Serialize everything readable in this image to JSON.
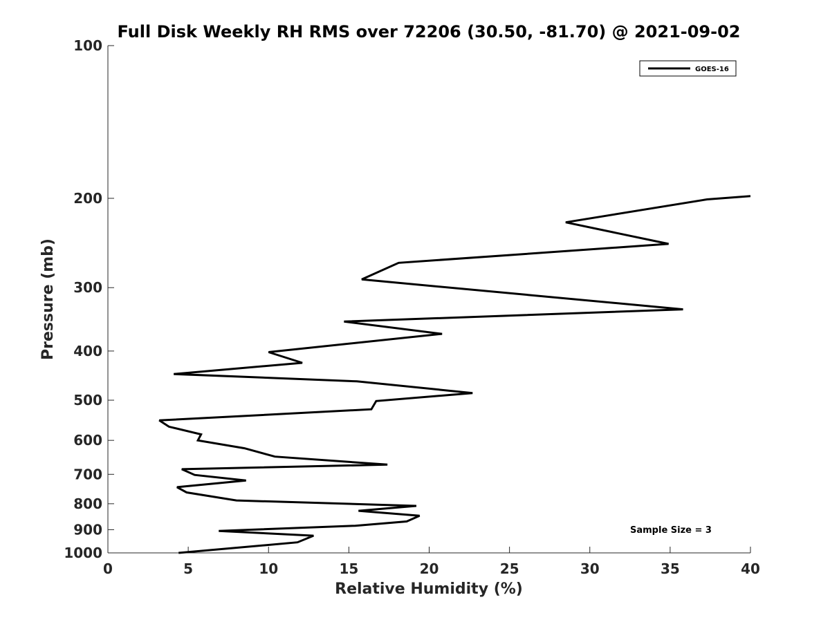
{
  "chart_data": {
    "type": "line",
    "title": "Full Disk Weekly RH RMS over 72206 (30.50, -81.70) @ 2021-09-02",
    "xlabel": "Relative Humidity (%)",
    "ylabel": "Pressure (mb)",
    "xlim": [
      0,
      40
    ],
    "ylim": [
      100,
      1000
    ],
    "y_scale": "log",
    "y_reversed": true,
    "x_ticks": [
      "0",
      "5",
      "10",
      "15",
      "20",
      "25",
      "30",
      "35",
      "40"
    ],
    "y_ticks": [
      "100",
      "200",
      "300",
      "400",
      "500",
      "600",
      "700",
      "800",
      "900",
      "1000"
    ],
    "grid": false,
    "legend_position": "top-right",
    "series": [
      {
        "name": "GOES-16",
        "color": "#000000",
        "points": [
          {
            "x": 40.0,
            "p": 198
          },
          {
            "x": 37.3,
            "p": 201
          },
          {
            "x": 28.5,
            "p": 223
          },
          {
            "x": 34.9,
            "p": 246
          },
          {
            "x": 18.1,
            "p": 268
          },
          {
            "x": 15.8,
            "p": 289
          },
          {
            "x": 35.8,
            "p": 331
          },
          {
            "x": 14.7,
            "p": 350
          },
          {
            "x": 20.8,
            "p": 370
          },
          {
            "x": 10.0,
            "p": 402
          },
          {
            "x": 12.1,
            "p": 422
          },
          {
            "x": 4.1,
            "p": 444
          },
          {
            "x": 15.5,
            "p": 459
          },
          {
            "x": 22.7,
            "p": 484
          },
          {
            "x": 16.7,
            "p": 502
          },
          {
            "x": 16.4,
            "p": 521
          },
          {
            "x": 3.2,
            "p": 548
          },
          {
            "x": 3.8,
            "p": 564
          },
          {
            "x": 5.8,
            "p": 584
          },
          {
            "x": 5.6,
            "p": 600
          },
          {
            "x": 8.5,
            "p": 622
          },
          {
            "x": 10.4,
            "p": 646
          },
          {
            "x": 17.4,
            "p": 670
          },
          {
            "x": 4.6,
            "p": 684
          },
          {
            "x": 5.4,
            "p": 702
          },
          {
            "x": 8.6,
            "p": 720
          },
          {
            "x": 4.3,
            "p": 742
          },
          {
            "x": 4.9,
            "p": 760
          },
          {
            "x": 8.0,
            "p": 788
          },
          {
            "x": 19.2,
            "p": 808
          },
          {
            "x": 15.6,
            "p": 826
          },
          {
            "x": 19.4,
            "p": 845
          },
          {
            "x": 18.6,
            "p": 867
          },
          {
            "x": 15.4,
            "p": 884
          },
          {
            "x": 6.9,
            "p": 905
          },
          {
            "x": 12.8,
            "p": 925
          },
          {
            "x": 11.8,
            "p": 953
          },
          {
            "x": 4.4,
            "p": 1000
          }
        ]
      }
    ],
    "annotations": [
      "Sample Size = 3"
    ]
  }
}
